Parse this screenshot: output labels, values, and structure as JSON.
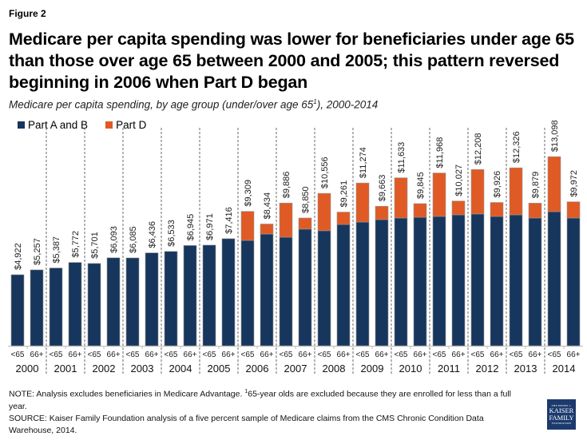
{
  "figure_label": "Figure 2",
  "title": "Medicare per capita spending was lower for beneficiaries under age 65 than those over age 65 between 2000 and 2005; this pattern reversed beginning in 2006 when Part D began",
  "subtitle_pre": "Medicare per capita spending, by age group (under/over age 65",
  "subtitle_sup": "1",
  "subtitle_post": "), 2000-2014",
  "note_pre": "NOTE: Analysis excludes beneficiaries in Medicare Advantage. ",
  "note_sup": "1",
  "note_post": "65-year olds are excluded because they are enrolled for less than a full year.",
  "source": "SOURCE: Kaiser Family Foundation analysis of a five percent sample of Medicare claims from the CMS Chronic Condition Data Warehouse, 2014.",
  "logo": {
    "line1": "THE HENRY J.",
    "line2": "KAISER",
    "line3": "FAMILY",
    "line4": "FOUNDATION"
  },
  "colors": {
    "part_ab": "#17365d",
    "part_d": "#e05a25"
  },
  "chart_data": {
    "type": "bar",
    "stacked": true,
    "title": "Medicare per capita spending, by age group (under/over age 65), 2000-2014",
    "xlabel": "",
    "ylabel": "",
    "ylim": [
      0,
      14000
    ],
    "grid": false,
    "legend_position": "top-left",
    "groups": [
      "2000",
      "2001",
      "2002",
      "2003",
      "2004",
      "2005",
      "2006",
      "2007",
      "2008",
      "2009",
      "2010",
      "2011",
      "2012",
      "2013",
      "2014"
    ],
    "subcategories": [
      "<65",
      "66+"
    ],
    "series": [
      {
        "name": "Part A and B",
        "color": "#17365d",
        "values": [
          4922,
          5257,
          5387,
          5772,
          5701,
          6093,
          6085,
          6436,
          6533,
          6945,
          6971,
          7416,
          7300,
          7740,
          7520,
          8080,
          7970,
          8400,
          8570,
          8740,
          8850,
          8900,
          8960,
          9070,
          9130,
          8960,
          9070,
          8850,
          9290,
          8850
        ]
      },
      {
        "name": "Part D",
        "color": "#e05a25",
        "values": [
          0,
          0,
          0,
          0,
          0,
          0,
          0,
          0,
          0,
          0,
          0,
          0,
          2009,
          694,
          2366,
          770,
          2586,
          861,
          2704,
          923,
          2783,
          945,
          3008,
          957,
          3078,
          966,
          3256,
          1029,
          3808,
          1122
        ]
      }
    ],
    "totals": [
      4922,
      5257,
      5387,
      5772,
      5701,
      6093,
      6085,
      6436,
      6533,
      6945,
      6971,
      7416,
      9309,
      8434,
      9886,
      8850,
      10556,
      9261,
      11274,
      9663,
      11633,
      9845,
      11968,
      10027,
      12208,
      9926,
      12326,
      9879,
      13098,
      9972
    ],
    "total_labels": [
      "$4,922",
      "$5,257",
      "$5,387",
      "$5,772",
      "$5,701",
      "$6,093",
      "$6,085",
      "$6,436",
      "$6,533",
      "$6,945",
      "$6,971",
      "$7,416",
      "$9,309",
      "$8,434",
      "$9,886",
      "$8,850",
      "$10,556",
      "$9,261",
      "$11,274",
      "$9,663",
      "$11,633",
      "$9,845",
      "$11,968",
      "$10,027",
      "$12,208",
      "$9,926",
      "$12,326",
      "$9,879",
      "$13,098",
      "$9,972"
    ]
  }
}
